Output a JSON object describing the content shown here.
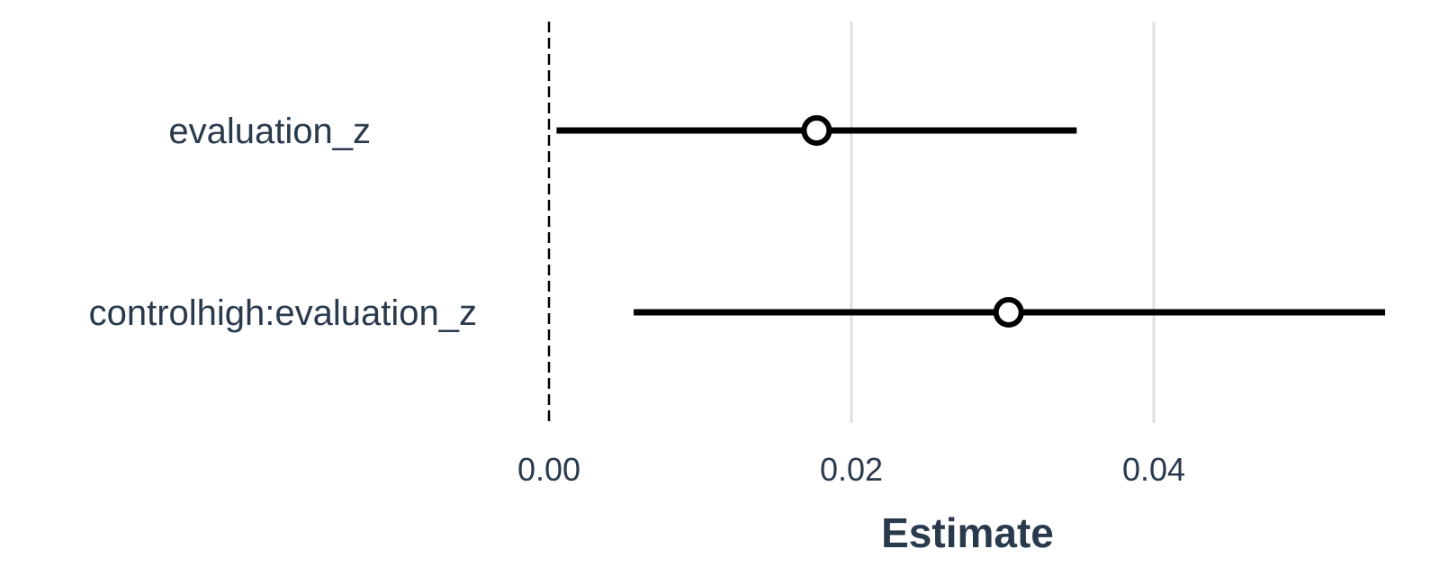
{
  "chart_data": {
    "type": "forest",
    "xlabel": "Estimate",
    "ylabel": "",
    "xlim": [
      0.0,
      0.055
    ],
    "x_ticks": [
      {
        "value": 0.0,
        "label": "0.00"
      },
      {
        "value": 0.02,
        "label": "0.02"
      },
      {
        "value": 0.04,
        "label": "0.04"
      }
    ],
    "reference_line": {
      "x": 0,
      "style": "dashed"
    },
    "grid": "vertical",
    "legend": "none",
    "rows": [
      {
        "label": "evaluation_z",
        "estimate": 0.0177,
        "ci_low": 0.0005,
        "ci_high": 0.0349
      },
      {
        "label": "controlhigh:evaluation_z",
        "estimate": 0.0304,
        "ci_low": 0.0056,
        "ci_high": 0.0553
      }
    ],
    "colors": {
      "interval": "#000000",
      "point_fill": "#ffffff",
      "grid": "#e0e0e0",
      "text": "#2a3a4d"
    }
  }
}
